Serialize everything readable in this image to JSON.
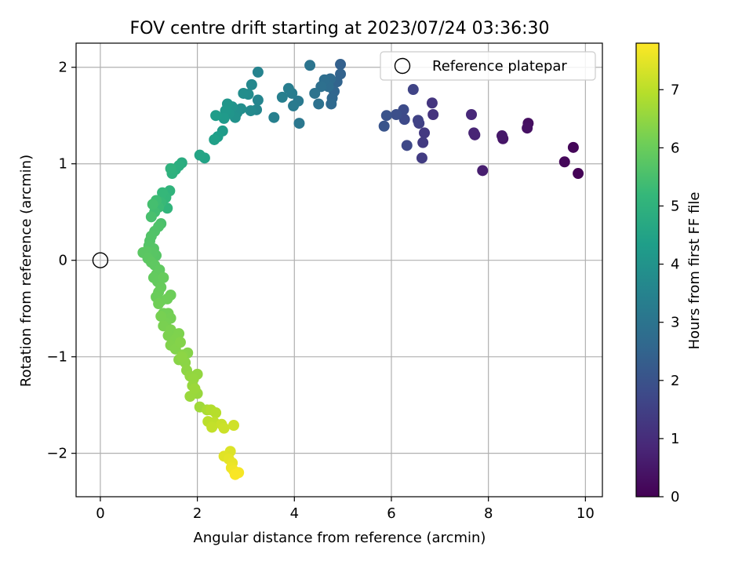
{
  "chart_data": {
    "type": "scatter",
    "title": "FOV centre drift starting at 2023/07/24 03:36:30",
    "xlabel": "Angular distance from reference (arcmin)",
    "ylabel": "Rotation from reference (arcmin)",
    "xlim": [
      -0.5,
      10.35
    ],
    "ylim": [
      -2.45,
      2.25
    ],
    "xticks": [
      0,
      2,
      4,
      6,
      8,
      10
    ],
    "yticks": [
      -2,
      -1,
      0,
      1,
      2
    ],
    "xtick_labels": [
      "0",
      "2",
      "4",
      "6",
      "8",
      "10"
    ],
    "ytick_labels": [
      "−2",
      "−1",
      "0",
      "1",
      "2"
    ],
    "grid": true,
    "legend": {
      "placement": "top-right",
      "entries": [
        {
          "label": "Reference platepar",
          "marker": "open-circle",
          "color": "#000000"
        }
      ]
    },
    "reference_point": {
      "x": 0,
      "y": 0
    },
    "colorbar": {
      "label": "Hours from first FF file",
      "range": [
        0,
        7.8
      ],
      "ticks": [
        0,
        1,
        2,
        3,
        4,
        5,
        6,
        7
      ],
      "tick_labels": [
        "0",
        "1",
        "2",
        "3",
        "4",
        "5",
        "6",
        "7"
      ],
      "colormap": [
        "#440154",
        "#482878",
        "#3e4989",
        "#31688e",
        "#26828e",
        "#1f9e89",
        "#35b779",
        "#6ece58",
        "#b5de2b",
        "#fde725"
      ]
    },
    "points": [
      {
        "x": 9.85,
        "y": 0.9,
        "t": 0.05
      },
      {
        "x": 9.75,
        "y": 1.17,
        "t": 0.1
      },
      {
        "x": 9.57,
        "y": 1.02,
        "t": 0.15
      },
      {
        "x": 8.82,
        "y": 1.42,
        "t": 0.3
      },
      {
        "x": 8.8,
        "y": 1.37,
        "t": 0.35
      },
      {
        "x": 8.3,
        "y": 1.26,
        "t": 0.45
      },
      {
        "x": 8.28,
        "y": 1.29,
        "t": 0.5
      },
      {
        "x": 7.88,
        "y": 0.93,
        "t": 0.65
      },
      {
        "x": 7.72,
        "y": 1.3,
        "t": 0.75
      },
      {
        "x": 7.7,
        "y": 1.32,
        "t": 0.8
      },
      {
        "x": 7.65,
        "y": 1.51,
        "t": 0.9
      },
      {
        "x": 6.86,
        "y": 1.51,
        "t": 1.15
      },
      {
        "x": 6.84,
        "y": 1.63,
        "t": 1.2
      },
      {
        "x": 6.68,
        "y": 1.32,
        "t": 1.3
      },
      {
        "x": 6.65,
        "y": 1.22,
        "t": 1.35
      },
      {
        "x": 6.63,
        "y": 1.06,
        "t": 1.4
      },
      {
        "x": 6.57,
        "y": 1.42,
        "t": 1.5
      },
      {
        "x": 6.55,
        "y": 1.45,
        "t": 1.55
      },
      {
        "x": 6.45,
        "y": 1.77,
        "t": 1.6
      },
      {
        "x": 6.32,
        "y": 1.19,
        "t": 1.7
      },
      {
        "x": 6.27,
        "y": 1.46,
        "t": 1.75
      },
      {
        "x": 6.25,
        "y": 1.56,
        "t": 1.8
      },
      {
        "x": 6.1,
        "y": 1.51,
        "t": 1.9
      },
      {
        "x": 5.9,
        "y": 1.5,
        "t": 2.0
      },
      {
        "x": 5.85,
        "y": 1.39,
        "t": 2.05
      },
      {
        "x": 4.95,
        "y": 2.03,
        "t": 2.4
      },
      {
        "x": 4.95,
        "y": 1.93,
        "t": 2.45
      },
      {
        "x": 4.88,
        "y": 1.85,
        "t": 2.5
      },
      {
        "x": 4.82,
        "y": 1.75,
        "t": 2.55
      },
      {
        "x": 4.78,
        "y": 1.68,
        "t": 2.6
      },
      {
        "x": 4.76,
        "y": 1.62,
        "t": 2.65
      },
      {
        "x": 4.74,
        "y": 1.88,
        "t": 2.7
      },
      {
        "x": 4.7,
        "y": 1.8,
        "t": 2.75
      },
      {
        "x": 4.62,
        "y": 1.87,
        "t": 2.8
      },
      {
        "x": 4.55,
        "y": 1.8,
        "t": 2.85
      },
      {
        "x": 4.5,
        "y": 1.62,
        "t": 2.9
      },
      {
        "x": 4.42,
        "y": 1.73,
        "t": 2.95
      },
      {
        "x": 4.32,
        "y": 2.02,
        "t": 3.0
      },
      {
        "x": 4.1,
        "y": 1.42,
        "t": 3.1
      },
      {
        "x": 4.08,
        "y": 1.65,
        "t": 3.15
      },
      {
        "x": 3.98,
        "y": 1.6,
        "t": 3.2
      },
      {
        "x": 3.95,
        "y": 1.73,
        "t": 3.25
      },
      {
        "x": 3.88,
        "y": 1.78,
        "t": 3.3
      },
      {
        "x": 3.75,
        "y": 1.69,
        "t": 3.35
      },
      {
        "x": 3.58,
        "y": 1.48,
        "t": 3.4
      },
      {
        "x": 3.25,
        "y": 1.95,
        "t": 3.5
      },
      {
        "x": 3.25,
        "y": 1.66,
        "t": 3.55
      },
      {
        "x": 3.22,
        "y": 1.56,
        "t": 3.6
      },
      {
        "x": 3.12,
        "y": 1.82,
        "t": 3.65
      },
      {
        "x": 3.1,
        "y": 1.55,
        "t": 3.7
      },
      {
        "x": 3.05,
        "y": 1.72,
        "t": 3.75
      },
      {
        "x": 2.95,
        "y": 1.73,
        "t": 3.8
      },
      {
        "x": 2.9,
        "y": 1.57,
        "t": 3.85
      },
      {
        "x": 2.82,
        "y": 1.53,
        "t": 3.9
      },
      {
        "x": 2.78,
        "y": 1.48,
        "t": 3.95
      },
      {
        "x": 2.72,
        "y": 1.59,
        "t": 4.0
      },
      {
        "x": 2.65,
        "y": 1.52,
        "t": 4.05
      },
      {
        "x": 2.62,
        "y": 1.62,
        "t": 4.1
      },
      {
        "x": 2.58,
        "y": 1.55,
        "t": 4.15
      },
      {
        "x": 2.55,
        "y": 1.47,
        "t": 4.2
      },
      {
        "x": 2.52,
        "y": 1.34,
        "t": 4.25
      },
      {
        "x": 2.38,
        "y": 1.5,
        "t": 4.3
      },
      {
        "x": 2.42,
        "y": 1.28,
        "t": 4.35
      },
      {
        "x": 2.35,
        "y": 1.25,
        "t": 4.4
      },
      {
        "x": 2.15,
        "y": 1.06,
        "t": 4.5
      },
      {
        "x": 2.05,
        "y": 1.09,
        "t": 4.55
      },
      {
        "x": 1.68,
        "y": 1.01,
        "t": 4.8
      },
      {
        "x": 1.62,
        "y": 0.98,
        "t": 4.85
      },
      {
        "x": 1.55,
        "y": 0.94,
        "t": 4.9
      },
      {
        "x": 1.48,
        "y": 0.9,
        "t": 4.95
      },
      {
        "x": 1.45,
        "y": 0.95,
        "t": 5.0
      },
      {
        "x": 1.43,
        "y": 0.72,
        "t": 5.05
      },
      {
        "x": 1.38,
        "y": 0.54,
        "t": 5.1
      },
      {
        "x": 1.35,
        "y": 0.65,
        "t": 5.15
      },
      {
        "x": 1.28,
        "y": 0.7,
        "t": 5.2
      },
      {
        "x": 1.25,
        "y": 0.6,
        "t": 5.25
      },
      {
        "x": 1.2,
        "y": 0.55,
        "t": 5.3
      },
      {
        "x": 1.15,
        "y": 0.62,
        "t": 5.35
      },
      {
        "x": 1.12,
        "y": 0.5,
        "t": 5.4
      },
      {
        "x": 1.08,
        "y": 0.58,
        "t": 5.45
      },
      {
        "x": 1.05,
        "y": 0.45,
        "t": 5.5
      },
      {
        "x": 1.25,
        "y": 0.38,
        "t": 5.55
      },
      {
        "x": 1.2,
        "y": 0.35,
        "t": 5.6
      },
      {
        "x": 1.12,
        "y": 0.3,
        "t": 5.62
      },
      {
        "x": 1.05,
        "y": 0.25,
        "t": 5.64
      },
      {
        "x": 1.02,
        "y": 0.2,
        "t": 5.66
      },
      {
        "x": 1.0,
        "y": 0.15,
        "t": 5.68
      },
      {
        "x": 1.1,
        "y": 0.12,
        "t": 5.7
      },
      {
        "x": 1.15,
        "y": 0.05,
        "t": 5.72
      },
      {
        "x": 1.08,
        "y": 0.08,
        "t": 5.74
      },
      {
        "x": 0.95,
        "y": 0.09,
        "t": 5.76
      },
      {
        "x": 0.88,
        "y": 0.08,
        "t": 5.78
      },
      {
        "x": 0.98,
        "y": 0.02,
        "t": 5.8
      },
      {
        "x": 1.05,
        "y": -0.02,
        "t": 5.82
      },
      {
        "x": 1.12,
        "y": -0.05,
        "t": 5.84
      },
      {
        "x": 1.22,
        "y": -0.1,
        "t": 5.86
      },
      {
        "x": 1.15,
        "y": -0.15,
        "t": 5.88
      },
      {
        "x": 1.1,
        "y": -0.18,
        "t": 5.9
      },
      {
        "x": 1.18,
        "y": -0.22,
        "t": 5.92
      },
      {
        "x": 1.3,
        "y": -0.18,
        "t": 5.94
      },
      {
        "x": 1.25,
        "y": -0.28,
        "t": 5.96
      },
      {
        "x": 1.2,
        "y": -0.33,
        "t": 5.98
      },
      {
        "x": 1.15,
        "y": -0.38,
        "t": 6.0
      },
      {
        "x": 1.25,
        "y": -0.42,
        "t": 6.02
      },
      {
        "x": 1.45,
        "y": -0.36,
        "t": 6.04
      },
      {
        "x": 1.38,
        "y": -0.4,
        "t": 6.06
      },
      {
        "x": 1.2,
        "y": -0.45,
        "t": 6.08
      },
      {
        "x": 1.3,
        "y": -0.55,
        "t": 6.1
      },
      {
        "x": 1.4,
        "y": -0.55,
        "t": 6.12
      },
      {
        "x": 1.45,
        "y": -0.6,
        "t": 6.14
      },
      {
        "x": 1.35,
        "y": -0.65,
        "t": 6.16
      },
      {
        "x": 1.25,
        "y": -0.58,
        "t": 6.18
      },
      {
        "x": 1.3,
        "y": -0.68,
        "t": 6.2
      },
      {
        "x": 1.45,
        "y": -0.72,
        "t": 6.22
      },
      {
        "x": 1.4,
        "y": -0.78,
        "t": 6.24
      },
      {
        "x": 1.62,
        "y": -0.76,
        "t": 6.26
      },
      {
        "x": 1.55,
        "y": -0.82,
        "t": 6.28
      },
      {
        "x": 1.45,
        "y": -0.88,
        "t": 6.3
      },
      {
        "x": 1.55,
        "y": -0.92,
        "t": 6.32
      },
      {
        "x": 1.65,
        "y": -0.85,
        "t": 6.34
      },
      {
        "x": 1.8,
        "y": -0.96,
        "t": 6.36
      },
      {
        "x": 1.7,
        "y": -0.98,
        "t": 6.38
      },
      {
        "x": 1.62,
        "y": -1.03,
        "t": 6.4
      },
      {
        "x": 1.75,
        "y": -1.06,
        "t": 6.42
      },
      {
        "x": 1.68,
        "y": -1.0,
        "t": 6.44
      },
      {
        "x": 1.78,
        "y": -1.14,
        "t": 6.46
      },
      {
        "x": 1.85,
        "y": -1.2,
        "t": 6.5
      },
      {
        "x": 2.0,
        "y": -1.18,
        "t": 6.52
      },
      {
        "x": 1.92,
        "y": -1.23,
        "t": 6.54
      },
      {
        "x": 1.9,
        "y": -1.3,
        "t": 6.56
      },
      {
        "x": 2.0,
        "y": -1.38,
        "t": 6.58
      },
      {
        "x": 1.85,
        "y": -1.41,
        "t": 6.6
      },
      {
        "x": 1.95,
        "y": -1.33,
        "t": 6.62
      },
      {
        "x": 2.05,
        "y": -1.52,
        "t": 6.66
      },
      {
        "x": 2.2,
        "y": -1.55,
        "t": 6.8
      },
      {
        "x": 2.28,
        "y": -1.55,
        "t": 6.9
      },
      {
        "x": 2.38,
        "y": -1.58,
        "t": 6.95
      },
      {
        "x": 2.22,
        "y": -1.67,
        "t": 7.0
      },
      {
        "x": 2.35,
        "y": -1.68,
        "t": 7.05
      },
      {
        "x": 2.3,
        "y": -1.73,
        "t": 7.1
      },
      {
        "x": 2.5,
        "y": -1.7,
        "t": 7.15
      },
      {
        "x": 2.55,
        "y": -1.74,
        "t": 7.2
      },
      {
        "x": 2.75,
        "y": -1.71,
        "t": 7.25
      },
      {
        "x": 2.68,
        "y": -1.98,
        "t": 7.4
      },
      {
        "x": 2.55,
        "y": -2.03,
        "t": 7.45
      },
      {
        "x": 2.65,
        "y": -2.06,
        "t": 7.5
      },
      {
        "x": 2.72,
        "y": -2.1,
        "t": 7.55
      },
      {
        "x": 2.7,
        "y": -2.15,
        "t": 7.6
      },
      {
        "x": 2.75,
        "y": -2.18,
        "t": 7.65
      },
      {
        "x": 2.85,
        "y": -2.2,
        "t": 7.7
      },
      {
        "x": 2.78,
        "y": -2.22,
        "t": 7.75
      }
    ]
  }
}
